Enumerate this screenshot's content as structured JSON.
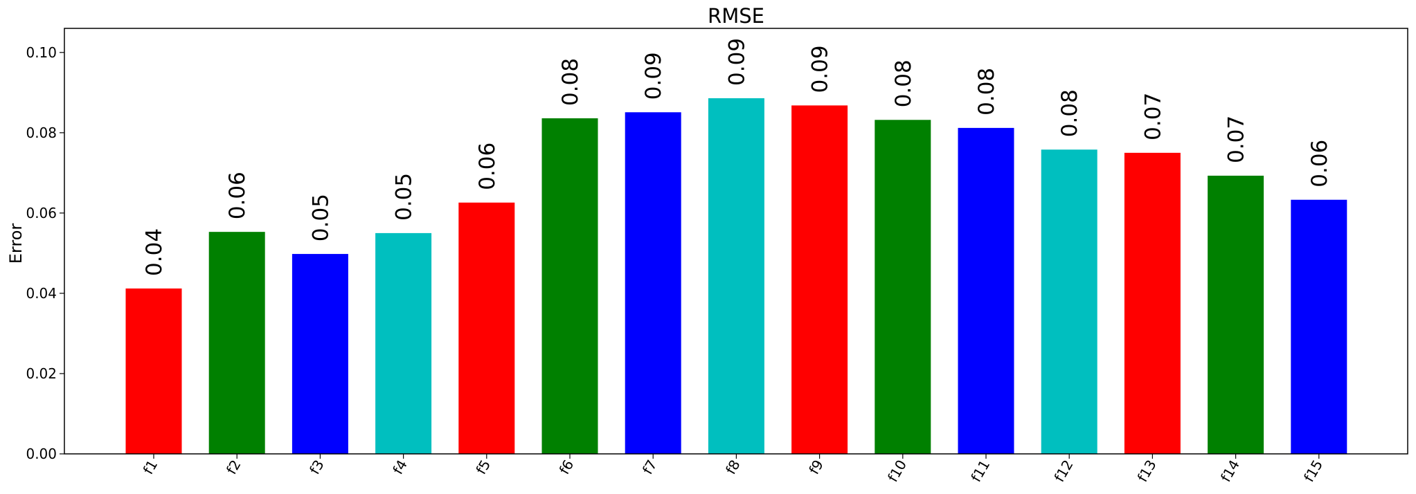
{
  "chart_data": {
    "type": "bar",
    "title": "RMSE",
    "xlabel": "",
    "ylabel": "Error",
    "ylim": [
      0,
      0.106
    ],
    "yticks": [
      "0.00",
      "0.02",
      "0.04",
      "0.06",
      "0.08",
      "0.10"
    ],
    "ytick_values": [
      0,
      0.02,
      0.04,
      0.06,
      0.08,
      0.1
    ],
    "categories": [
      "f1",
      "f2",
      "f3",
      "f4",
      "f5",
      "f6",
      "f7",
      "f8",
      "f9",
      "f10",
      "f11",
      "f12",
      "f13",
      "f14",
      "f15"
    ],
    "values": [
      0.0412,
      0.0553,
      0.0498,
      0.055,
      0.0626,
      0.0836,
      0.0851,
      0.0886,
      0.0868,
      0.0832,
      0.0812,
      0.0758,
      0.075,
      0.0693,
      0.0633
    ],
    "value_labels": [
      "0.04",
      "0.06",
      "0.05",
      "0.05",
      "0.06",
      "0.08",
      "0.09",
      "0.09",
      "0.09",
      "0.08",
      "0.08",
      "0.08",
      "0.07",
      "0.07",
      "0.06"
    ],
    "colors": [
      "#ff0000",
      "#008000",
      "#0000ff",
      "#00bfbf",
      "#ff0000",
      "#008000",
      "#0000ff",
      "#00bfbf",
      "#ff0000",
      "#008000",
      "#0000ff",
      "#00bfbf",
      "#ff0000",
      "#008000",
      "#0000ff"
    ],
    "grid": false,
    "legend": "none"
  }
}
